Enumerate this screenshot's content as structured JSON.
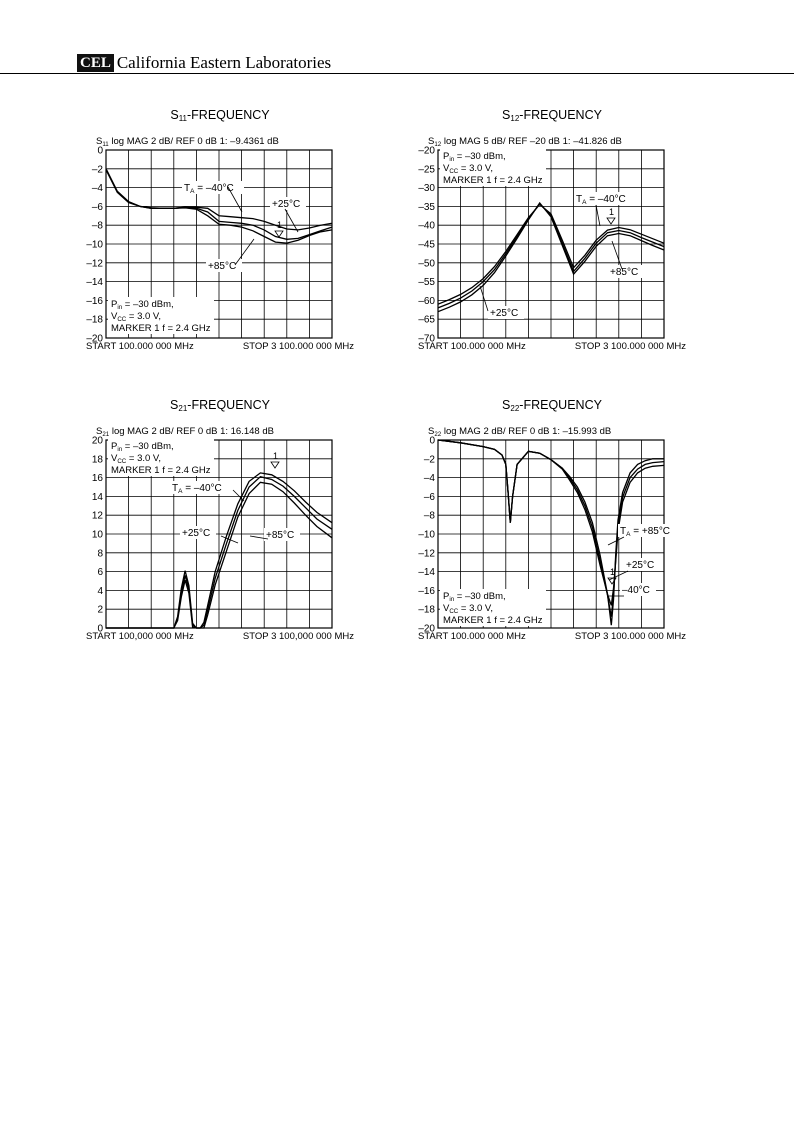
{
  "header": {
    "logo": "CEL",
    "company": "California Eastern Laboratories"
  },
  "chart_data": [
    {
      "type": "line",
      "title_main": "S",
      "title_sub": "11",
      "title_rest": "-FREQUENCY",
      "info": {
        "s": "S",
        "sub": "11",
        "rest": " log    MAG    2 dB/    REF 0 dB    1: –9.4361 dB"
      },
      "ylim": [
        -20,
        0
      ],
      "ytick_labels": [
        "0",
        "–2",
        "–4",
        "–6",
        "–8",
        "–10",
        "–12",
        "–14",
        "–16",
        "–18",
        "–20"
      ],
      "start_label": "START  100.000 000 MHz",
      "stop_label": "STOP  3 100.000 000 MHz",
      "x": [
        100,
        250,
        400,
        550,
        700,
        850,
        1000,
        1150,
        1300,
        1450,
        1600,
        1750,
        1900,
        2050,
        2200,
        2350,
        2500,
        2650,
        2800,
        2950,
        3100
      ],
      "series": [
        {
          "temp": "-40C",
          "values": [
            -2.1,
            -4.5,
            -5.6,
            -6.0,
            -6.15,
            -6.2,
            -6.2,
            -6.1,
            -6.1,
            -6.2,
            -7.0,
            -7.1,
            -7.2,
            -7.3,
            -7.6,
            -8.0,
            -8.4,
            -8.5,
            -8.3,
            -8.0,
            -7.8
          ]
        },
        {
          "temp": "+25C",
          "values": [
            -2.0,
            -4.4,
            -5.5,
            -6.0,
            -6.2,
            -6.2,
            -6.2,
            -6.1,
            -6.2,
            -6.6,
            -7.6,
            -7.7,
            -7.8,
            -8.0,
            -8.5,
            -9.2,
            -9.5,
            -9.4,
            -9.0,
            -8.6,
            -8.2
          ]
        },
        {
          "temp": "+85C",
          "values": [
            -2.0,
            -4.4,
            -5.5,
            -6.0,
            -6.2,
            -6.2,
            -6.2,
            -6.15,
            -6.3,
            -7.0,
            -7.9,
            -8.0,
            -8.2,
            -8.6,
            -9.2,
            -9.8,
            -9.9,
            -9.6,
            -9.1,
            -8.7,
            -8.5
          ]
        }
      ],
      "annotations": {
        "ta": {
          "main": "T",
          "sub": "A",
          "rest": " = –40°C"
        },
        "t25": "+25°C",
        "t85": "+85°C",
        "marker": "1"
      },
      "note": {
        "line1_main": "P",
        "line1_sub": "in",
        "line1_rest": " = –30 dBm,",
        "line2_main": "V",
        "line2_sub": "CC",
        "line2_rest": " = 3.0 V,",
        "line3": "MARKER 1  f = 2.4 GHz"
      }
    },
    {
      "type": "line",
      "title_main": "S",
      "title_sub": "12",
      "title_rest": "-FREQUENCY",
      "info": {
        "s": "S",
        "sub": "12",
        "rest": " log    MAG    5 dB/    REF –20 dB    1: –41.826 dB"
      },
      "ylim": [
        -70,
        -20
      ],
      "ytick_labels": [
        "–20",
        "–25",
        "–30",
        "–35",
        "–40",
        "–45",
        "–50",
        "–55",
        "–60",
        "–65",
        "–70"
      ],
      "start_label": "START  100.000 000 MHz",
      "stop_label": "STOP  3 100.000 000 MHz",
      "x": [
        100,
        250,
        400,
        550,
        700,
        850,
        1000,
        1150,
        1300,
        1450,
        1600,
        1750,
        1900,
        2050,
        2200,
        2350,
        2500,
        2650,
        2800,
        2950,
        3100
      ],
      "series": [
        {
          "temp": "-40C",
          "values": [
            -61,
            -59.8,
            -58.4,
            -56.6,
            -54.2,
            -51,
            -47,
            -42.5,
            -38,
            -34.5,
            -37,
            -44,
            -51.3,
            -48,
            -44,
            -41.3,
            -40.6,
            -41.2,
            -42.4,
            -43.6,
            -44.8
          ]
        },
        {
          "temp": "+25C",
          "values": [
            -62,
            -60.8,
            -59.4,
            -57.5,
            -55,
            -51.8,
            -47.6,
            -43,
            -38.3,
            -34.3,
            -37.4,
            -44.8,
            -52.3,
            -48.8,
            -44.8,
            -42,
            -41.4,
            -42,
            -43.3,
            -44.5,
            -45.7
          ]
        },
        {
          "temp": "+85C",
          "values": [
            -63,
            -61.8,
            -60.4,
            -58.5,
            -56,
            -52.6,
            -48.2,
            -43.5,
            -38.6,
            -34.1,
            -37.8,
            -45.4,
            -53,
            -49.6,
            -45.6,
            -42.8,
            -42.2,
            -42.8,
            -44.1,
            -45.4,
            -46.6
          ]
        }
      ],
      "annotations": {
        "ta": {
          "main": "T",
          "sub": "A",
          "rest": " = –40°C"
        },
        "t25": "+25°C",
        "t85": "+85°C",
        "marker": "1"
      },
      "note": {
        "line1_main": "P",
        "line1_sub": "in",
        "line1_rest": " = –30 dBm,",
        "line2_main": "V",
        "line2_sub": "CC",
        "line2_rest": " = 3.0 V,",
        "line3": "MARKER 1  f = 2.4 GHz"
      }
    },
    {
      "type": "line",
      "title_main": "S",
      "title_sub": "21",
      "title_rest": "-FREQUENCY",
      "info": {
        "s": "S",
        "sub": "21",
        "rest": " log    MAG    2 dB/    REF 0 dB    1: 16.148 dB"
      },
      "ylim": [
        0,
        20
      ],
      "ytick_labels": [
        "20",
        "18",
        "16",
        "14",
        "12",
        "10",
        "8",
        "6",
        "4",
        "2",
        "0"
      ],
      "start_label": "START  100,000 000 MHz",
      "stop_label": "STOP  3 100,000 000 MHz",
      "x": [
        100,
        250,
        400,
        550,
        700,
        850,
        1000,
        1050,
        1100,
        1150,
        1200,
        1250,
        1300,
        1350,
        1400,
        1450,
        1550,
        1700,
        1850,
        2000,
        2150,
        2300,
        2450,
        2600,
        2750,
        2900,
        3100
      ],
      "series": [
        {
          "temp": "-40C",
          "values": [
            0,
            0,
            0,
            0,
            0,
            0,
            0,
            1.2,
            4.2,
            6.1,
            4.5,
            0.5,
            0,
            0,
            0.6,
            2.4,
            6,
            9.8,
            13.2,
            15.6,
            16.5,
            16.3,
            15.6,
            14.6,
            13.4,
            12.3,
            11.2
          ]
        },
        {
          "temp": "+25C",
          "values": [
            0,
            0,
            0,
            0,
            0,
            0,
            0,
            1,
            3.7,
            5.6,
            4.1,
            0.3,
            0,
            0,
            0.3,
            1.9,
            5.3,
            9,
            12.5,
            15,
            16.1,
            15.8,
            15.1,
            14,
            12.8,
            11.6,
            10.5
          ]
        },
        {
          "temp": "+85C",
          "values": [
            0,
            0,
            0,
            0,
            0,
            0,
            0,
            0.8,
            3.3,
            5.1,
            3.7,
            0.1,
            0,
            0,
            0,
            1.4,
            4.6,
            8.2,
            11.8,
            14.3,
            15.5,
            15.3,
            14.5,
            13.3,
            12,
            10.8,
            9.6
          ]
        }
      ],
      "annotations": {
        "ta": {
          "main": "T",
          "sub": "A",
          "rest": " = –40°C"
        },
        "t25": "+25°C",
        "t85": "+85°C",
        "marker": "1"
      },
      "note": {
        "line1_main": "P",
        "line1_sub": "in",
        "line1_rest": " = –30 dBm,",
        "line2_main": "V",
        "line2_sub": "CC",
        "line2_rest": " = 3.0 V,",
        "line3": "MARKER 1  f = 2.4 GHz"
      }
    },
    {
      "type": "line",
      "title_main": "S",
      "title_sub": "22",
      "title_rest": "-FREQUENCY",
      "info": {
        "s": "S",
        "sub": "22",
        "rest": " log    MAG    2 dB/    REF 0 dB    1: –15.993 dB"
      },
      "ylim": [
        -20,
        0
      ],
      "ytick_labels": [
        "0",
        "–2",
        "–4",
        "–6",
        "–8",
        "–10",
        "–12",
        "–14",
        "–16",
        "–18",
        "–20"
      ],
      "start_label": "START  100.000 000 MHz",
      "stop_label": "STOP  3 100.000 000 MHz",
      "x": [
        100,
        400,
        700,
        850,
        950,
        1000,
        1030,
        1060,
        1090,
        1150,
        1300,
        1450,
        1600,
        1750,
        1850,
        1950,
        2050,
        2150,
        2250,
        2350,
        2400,
        2430,
        2460,
        2490,
        2550,
        2650,
        2750,
        2850,
        2950,
        3100
      ],
      "series": [
        {
          "temp": "-40C",
          "values": [
            0,
            -0.3,
            -0.7,
            -1.0,
            -1.6,
            -2.6,
            -5.6,
            -8.8,
            -6,
            -2.6,
            -1.2,
            -1.4,
            -2.1,
            -3,
            -3.9,
            -5,
            -6.6,
            -8.8,
            -12.2,
            -16.4,
            -19.7,
            -17,
            -12,
            -8.5,
            -5.6,
            -3.5,
            -2.6,
            -2.2,
            -2.0,
            -2.0
          ]
        },
        {
          "temp": "+25C",
          "values": [
            0,
            -0.3,
            -0.7,
            -1.0,
            -1.6,
            -2.6,
            -5.6,
            -8.8,
            -6,
            -2.6,
            -1.2,
            -1.4,
            -2.1,
            -3,
            -4.1,
            -5.3,
            -7,
            -9.3,
            -12.8,
            -16.5,
            -18.8,
            -16.5,
            -12.5,
            -9.1,
            -6.1,
            -4,
            -3.1,
            -2.6,
            -2.4,
            -2.3
          ]
        },
        {
          "temp": "+85C",
          "values": [
            0,
            -0.3,
            -0.7,
            -1.0,
            -1.6,
            -2.6,
            -5.6,
            -8.8,
            -6,
            -2.6,
            -1.2,
            -1.4,
            -2.1,
            -3.1,
            -4.3,
            -5.6,
            -7.4,
            -9.8,
            -13.3,
            -16.4,
            -17.6,
            -15.8,
            -12.8,
            -9.7,
            -6.6,
            -4.5,
            -3.5,
            -3,
            -2.8,
            -2.7
          ]
        }
      ],
      "annotations": {
        "ta": {
          "main": "T",
          "sub": "A",
          "rest": " = +85°C"
        },
        "t25": "+25°C",
        "t85": "–40°C",
        "marker": "1"
      },
      "note": {
        "line1_main": "P",
        "line1_sub": "in",
        "line1_rest": " = –30 dBm,",
        "line2_main": "V",
        "line2_sub": "CC",
        "line2_rest": " = 3.0 V,",
        "line3": "MARKER 1  f = 2.4 GHz"
      }
    }
  ]
}
